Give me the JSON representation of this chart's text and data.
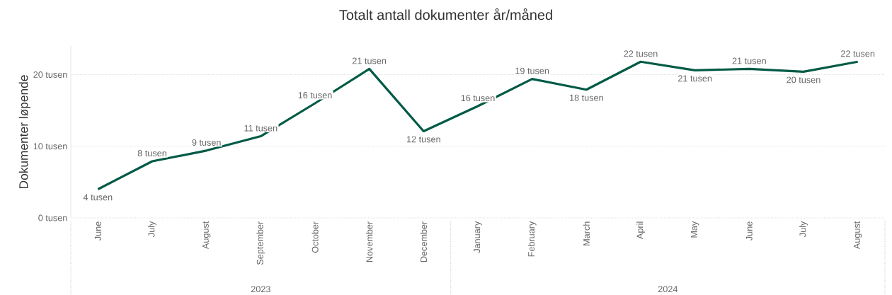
{
  "chart_data": {
    "type": "line",
    "title": "Totalt antall dokumenter år/måned",
    "ylabel": "Dokumenter løpende",
    "categories": [
      "June",
      "July",
      "August",
      "September",
      "October",
      "November",
      "December",
      "January",
      "February",
      "March",
      "April",
      "May",
      "June",
      "July",
      "August"
    ],
    "annotations": [
      "2023",
      "2024"
    ],
    "series": [
      {
        "color": "#005a46",
        "values": [
          4.0,
          7.9,
          9.4,
          11.4,
          16.0,
          20.8,
          12.1,
          15.6,
          19.4,
          17.9,
          21.8,
          20.6,
          20.8,
          20.4,
          21.8
        ],
        "value_labels": [
          "4 tusen",
          "8 tusen",
          "9 tusen",
          "11 tusen",
          "16 tusen",
          "21 tusen",
          "12 tusen",
          "16 tusen",
          "19 tusen",
          "18 tusen",
          "22 tusen",
          "21 tusen",
          "21 tusen",
          "20 tusen",
          "22 tusen"
        ]
      }
    ],
    "yticks": [
      {
        "value": 0,
        "label": "0 tusen"
      },
      {
        "value": 10,
        "label": "10 tusen"
      },
      {
        "value": 20,
        "label": "20 tusen"
      }
    ],
    "ylim": [
      0,
      24
    ],
    "grid": "y"
  }
}
